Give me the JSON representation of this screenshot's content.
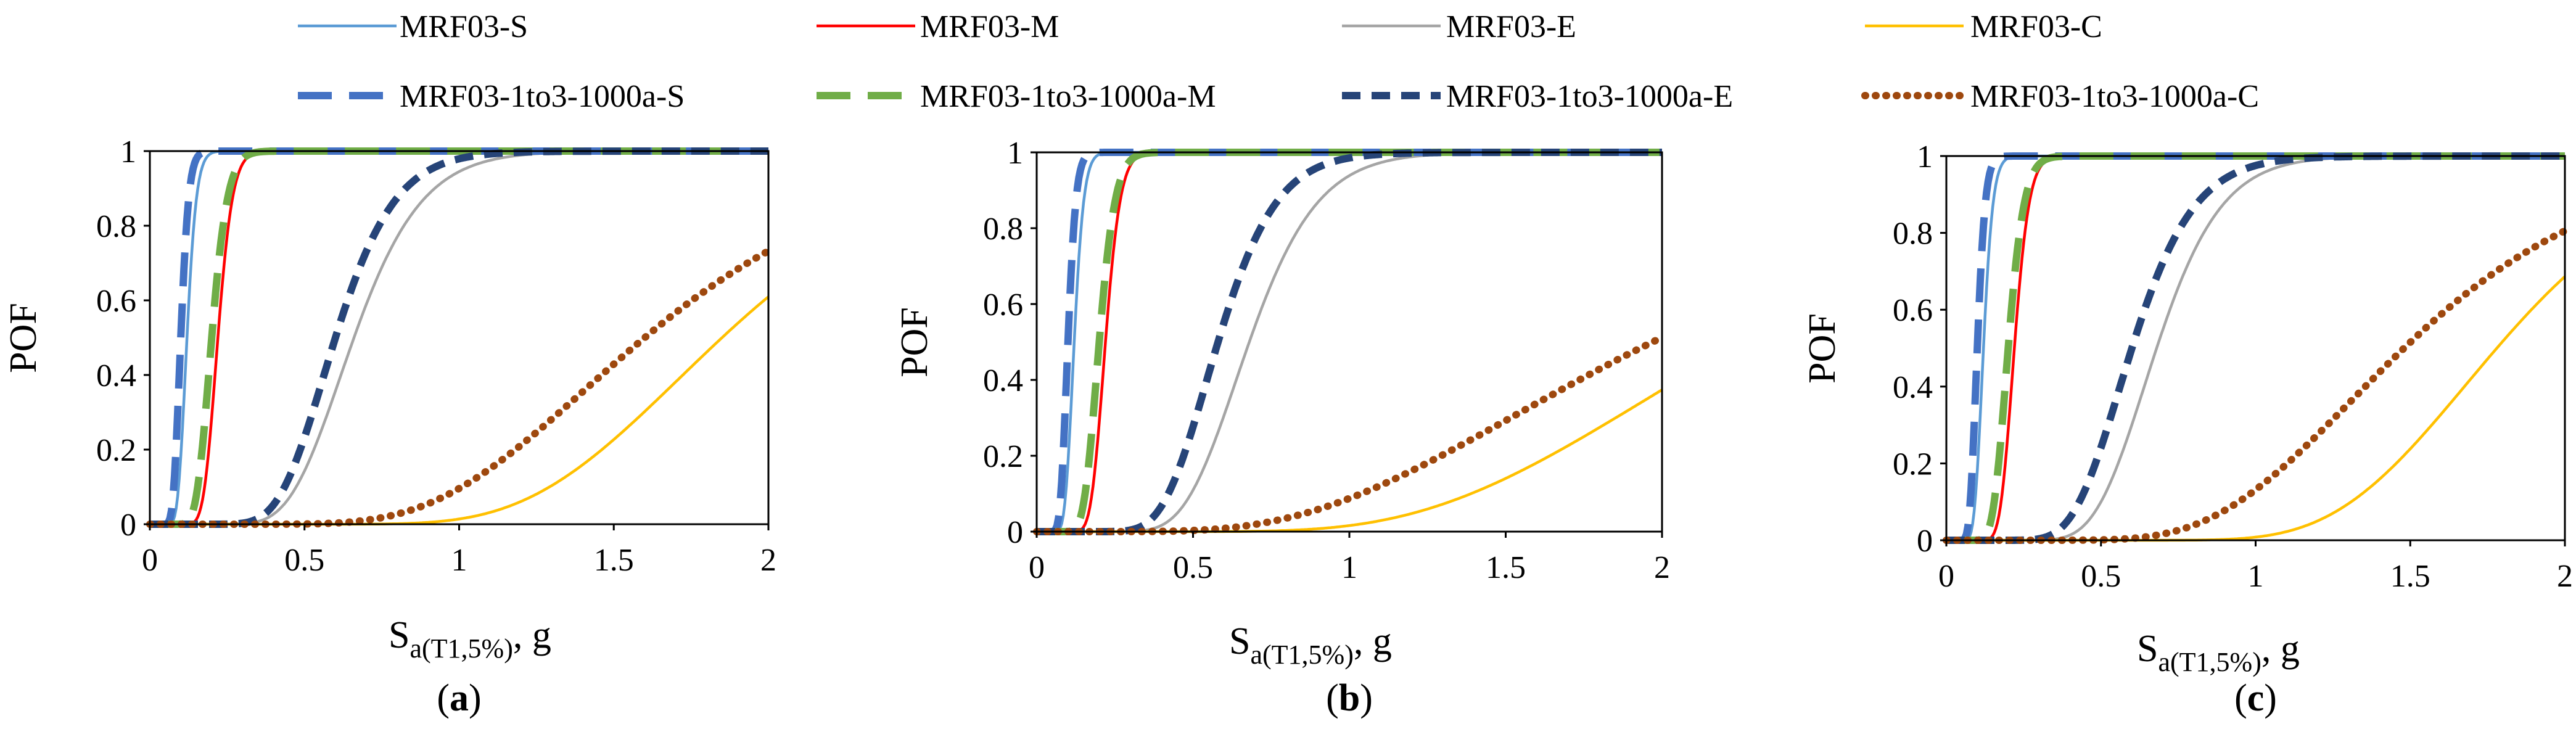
{
  "legend": [
    {
      "key": "s_base",
      "label": "MRF03-S"
    },
    {
      "key": "m_base",
      "label": "MRF03-M"
    },
    {
      "key": "e_base",
      "label": "MRF03-E"
    },
    {
      "key": "c_base",
      "label": "MRF03-C"
    },
    {
      "key": "s_mod",
      "label": "MRF03-1to3-1000a-S"
    },
    {
      "key": "m_mod",
      "label": "MRF03-1to3-1000a-M"
    },
    {
      "key": "e_mod",
      "label": "MRF03-1to3-1000a-E"
    },
    {
      "key": "c_mod",
      "label": "MRF03-1to3-1000a-C"
    }
  ],
  "series_styles": {
    "s_base": {
      "color": "#5b9bd5",
      "dash": "solid",
      "weight": "thin"
    },
    "m_base": {
      "color": "#ff0000",
      "dash": "solid",
      "weight": "thin"
    },
    "e_base": {
      "color": "#a5a5a5",
      "dash": "solid",
      "weight": "thin"
    },
    "c_base": {
      "color": "#ffc000",
      "dash": "solid",
      "weight": "thin"
    },
    "s_mod": {
      "color": "#4472c4",
      "dash": "long-dash",
      "weight": "thick"
    },
    "m_mod": {
      "color": "#70ad47",
      "dash": "long-dash",
      "weight": "thick"
    },
    "e_mod": {
      "color": "#264478",
      "dash": "dash",
      "weight": "thick"
    },
    "c_mod": {
      "color": "#9e480e",
      "dash": "dot",
      "weight": "thick"
    }
  },
  "axis_text": {
    "ylabel": "POF",
    "xlabel_main": "S",
    "xlabel_sub": "a(T1,5%)",
    "xlabel_unit": ", g"
  },
  "chart_data": [
    {
      "type": "line",
      "panel": "a",
      "label_open": "(",
      "label_letter": "a",
      "label_close": ")",
      "xlim": [
        0,
        2
      ],
      "ylim": [
        0,
        1
      ],
      "x_ticks": [
        "0",
        "0.5",
        "1",
        "1.5",
        "2"
      ],
      "y_ticks": [
        "0",
        "0.2",
        "0.4",
        "0.6",
        "0.8",
        "1"
      ],
      "ylabel": "POF",
      "xlabel": "Sa(T1,5%), g",
      "series": [
        {
          "key": "s_base",
          "name": "MRF03-S",
          "model": "lognormal",
          "median": 0.12,
          "beta": 0.2
        },
        {
          "key": "m_base",
          "name": "MRF03-M",
          "model": "lognormal",
          "median": 0.22,
          "beta": 0.17
        },
        {
          "key": "e_base",
          "name": "MRF03-E",
          "model": "lognormal",
          "median": 0.66,
          "beta": 0.26
        },
        {
          "key": "c_base",
          "name": "MRF03-C",
          "model": "lognormal",
          "median": 1.85,
          "beta": 0.28
        },
        {
          "key": "s_mod",
          "name": "MRF03-1to3-1000a-S",
          "model": "lognormal",
          "median": 0.1,
          "beta": 0.2
        },
        {
          "key": "m_mod",
          "name": "MRF03-1to3-1000a-M",
          "model": "lognormal",
          "median": 0.2,
          "beta": 0.2
        },
        {
          "key": "e_mod",
          "name": "MRF03-1to3-1000a-E",
          "model": "lognormal",
          "median": 0.6,
          "beta": 0.25
        },
        {
          "key": "c_mod",
          "name": "MRF03-1to3-1000a-C",
          "model": "lognormal",
          "median": 1.6,
          "beta": 0.36
        }
      ]
    },
    {
      "type": "line",
      "panel": "b",
      "label_open": "(",
      "label_letter": "b",
      "label_close": ")",
      "xlim": [
        0,
        2
      ],
      "ylim": [
        0,
        1
      ],
      "x_ticks": [
        "0",
        "0.5",
        "1",
        "1.5",
        "2"
      ],
      "y_ticks": [
        "0",
        "0.2",
        "0.4",
        "0.6",
        "0.8",
        "1"
      ],
      "ylabel": "POF",
      "xlabel": "Sa(T1,5%), g",
      "series": [
        {
          "key": "s_base",
          "name": "MRF03-S",
          "model": "lognormal",
          "median": 0.12,
          "beta": 0.2
        },
        {
          "key": "m_base",
          "name": "MRF03-M",
          "model": "lognormal",
          "median": 0.22,
          "beta": 0.17
        },
        {
          "key": "e_base",
          "name": "MRF03-E",
          "model": "lognormal",
          "median": 0.68,
          "beta": 0.25
        },
        {
          "key": "c_base",
          "name": "MRF03-C",
          "model": "lognormal",
          "median": 2.26,
          "beta": 0.38
        },
        {
          "key": "s_mod",
          "name": "MRF03-1to3-1000a-S",
          "model": "lognormal",
          "median": 0.1,
          "beta": 0.2
        },
        {
          "key": "m_mod",
          "name": "MRF03-1to3-1000a-M",
          "model": "lognormal",
          "median": 0.2,
          "beta": 0.2
        },
        {
          "key": "e_mod",
          "name": "MRF03-1to3-1000a-E",
          "model": "lognormal",
          "median": 0.58,
          "beta": 0.25
        },
        {
          "key": "c_mod",
          "name": "MRF03-1to3-1000a-C",
          "model": "lognormal",
          "median": 1.97,
          "beta": 0.5
        }
      ]
    },
    {
      "type": "line",
      "panel": "c",
      "label_open": "(",
      "label_letter": "c",
      "label_close": ")",
      "xlim": [
        0,
        2
      ],
      "ylim": [
        0,
        1
      ],
      "x_ticks": [
        "0",
        "0.5",
        "1",
        "1.5",
        "2"
      ],
      "y_ticks": [
        "0",
        "0.2",
        "0.4",
        "0.6",
        "0.8",
        "1"
      ],
      "ylabel": "POF",
      "xlabel": "Sa(T1,5%), g",
      "series": [
        {
          "key": "s_base",
          "name": "MRF03-S",
          "model": "lognormal",
          "median": 0.12,
          "beta": 0.2
        },
        {
          "key": "m_base",
          "name": "MRF03-M",
          "model": "lognormal",
          "median": 0.22,
          "beta": 0.17
        },
        {
          "key": "e_base",
          "name": "MRF03-E",
          "model": "lognormal",
          "median": 0.68,
          "beta": 0.24
        },
        {
          "key": "c_base",
          "name": "MRF03-C",
          "model": "lognormal",
          "median": 1.78,
          "beta": 0.24
        },
        {
          "key": "s_mod",
          "name": "MRF03-1to3-1000a-S",
          "model": "lognormal",
          "median": 0.1,
          "beta": 0.2
        },
        {
          "key": "m_mod",
          "name": "MRF03-1to3-1000a-M",
          "model": "lognormal",
          "median": 0.2,
          "beta": 0.2
        },
        {
          "key": "e_mod",
          "name": "MRF03-1to3-1000a-E",
          "model": "lognormal",
          "median": 0.6,
          "beta": 0.26
        },
        {
          "key": "c_mod",
          "name": "MRF03-1to3-1000a-C",
          "model": "lognormal",
          "median": 1.48,
          "beta": 0.35
        }
      ]
    }
  ]
}
